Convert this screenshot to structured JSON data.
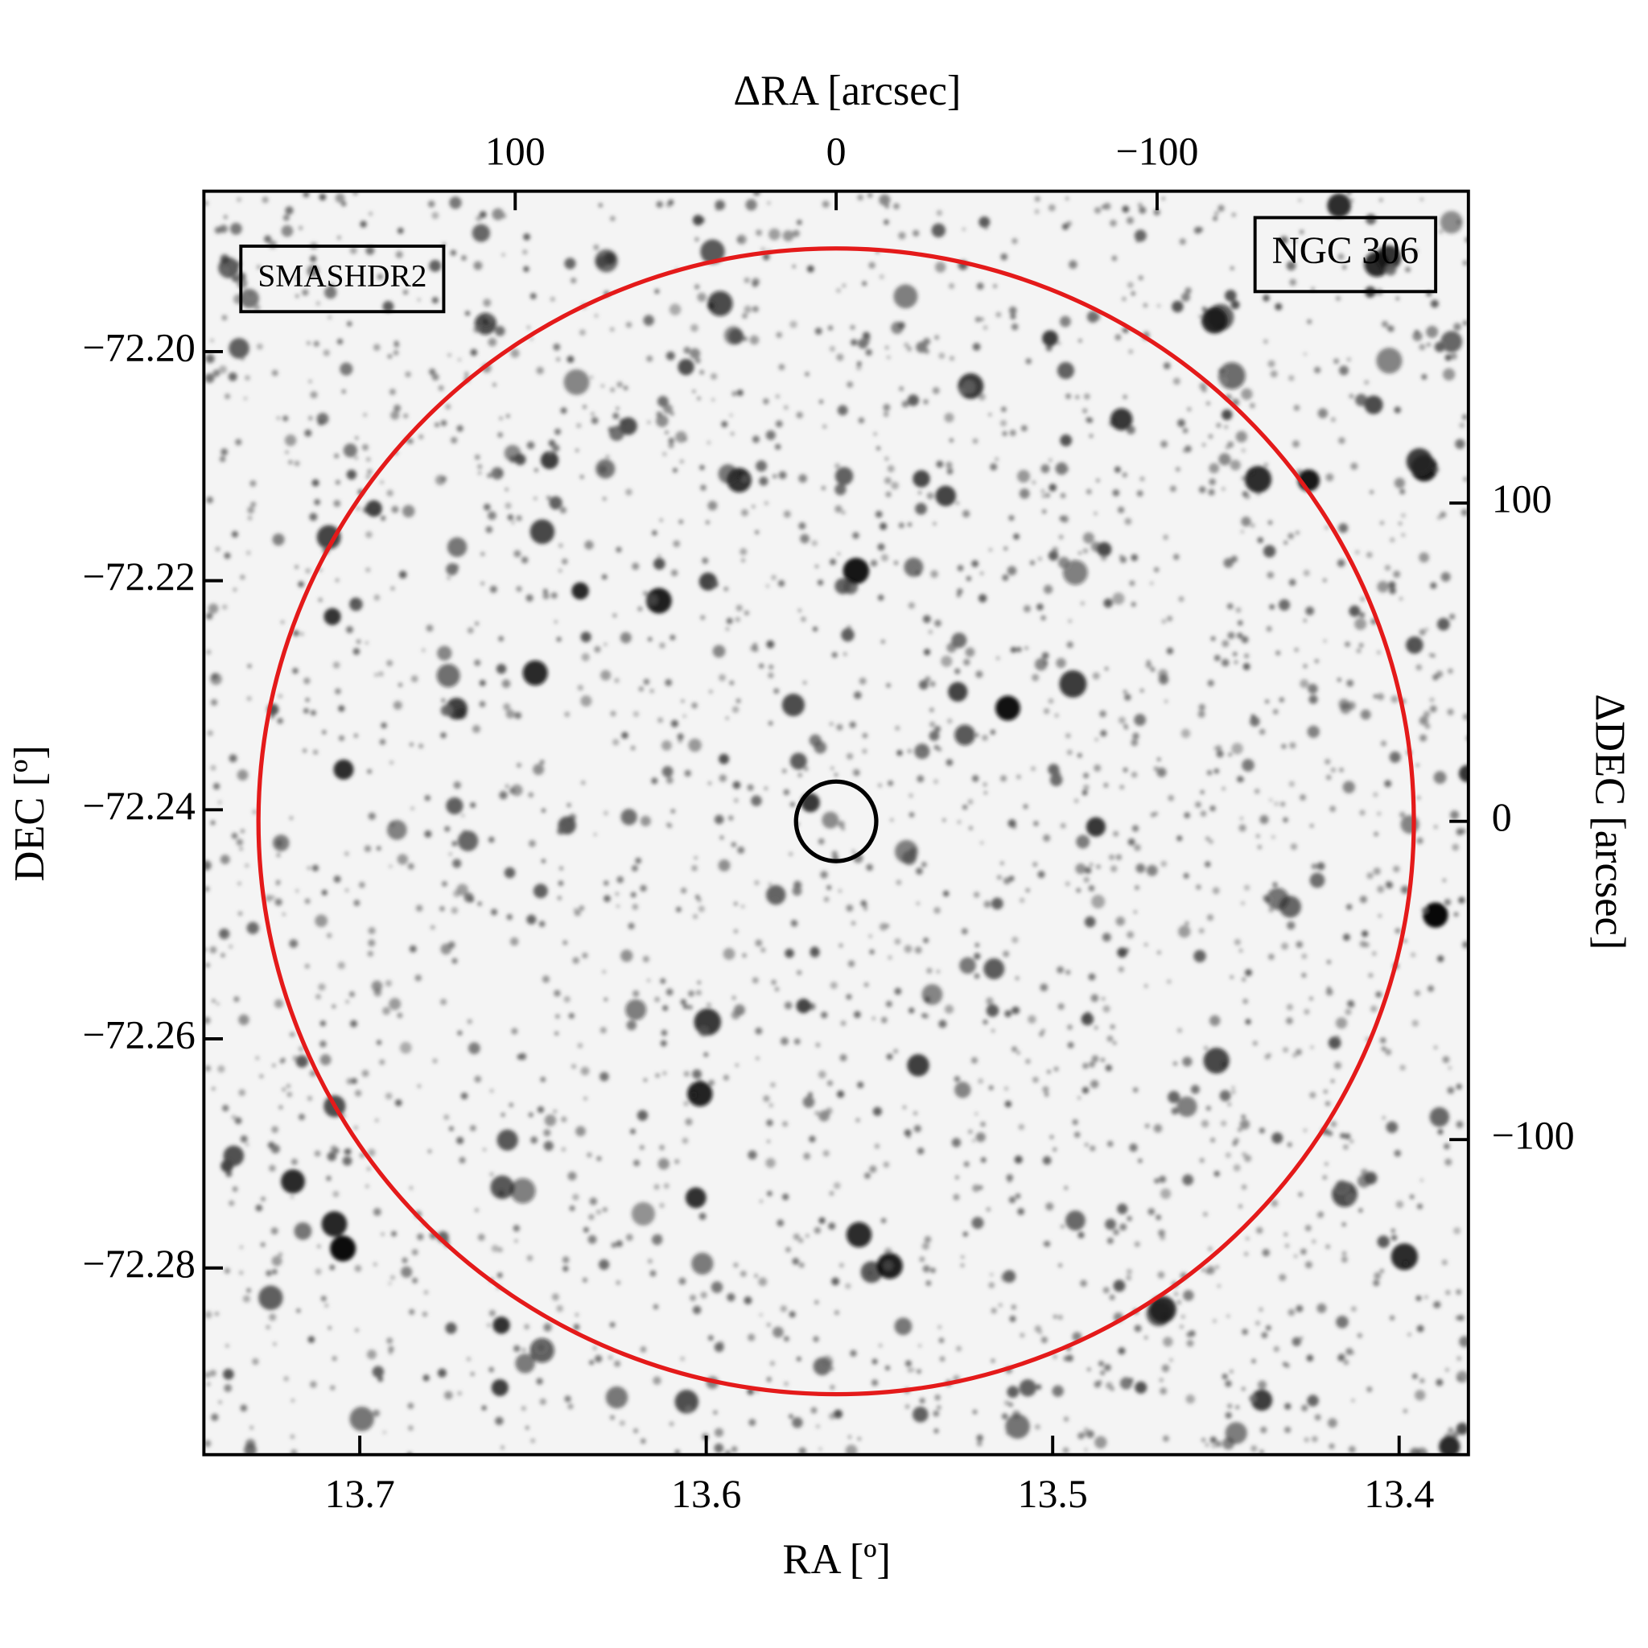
{
  "chart_data": {
    "type": "image",
    "xlabel": "RA [º]",
    "ylabel": "DEC [º]",
    "x2label": "ΔRA [arcsec]",
    "y2label": "ΔDEC [arcsec]",
    "xlim": [
      13.745,
      13.38
    ],
    "xticks": [
      13.7,
      13.6,
      13.5,
      13.4
    ],
    "ylim": [
      -72.2963,
      -72.186
    ],
    "yticks": [
      {
        "value": -72.2,
        "label": "−72.20"
      },
      {
        "value": -72.22,
        "label": "−72.22"
      },
      {
        "value": -72.24,
        "label": "−72.24"
      },
      {
        "value": -72.26,
        "label": "−72.26"
      },
      {
        "value": -72.28,
        "label": "−72.28"
      }
    ],
    "x2lim": [
      197,
      -197
    ],
    "x2ticks": [
      100,
      0,
      {
        "value": -100,
        "label": "−100"
      }
    ],
    "y2lim": [
      -199,
      198
    ],
    "y2ticks": [
      100,
      0,
      {
        "value": -100,
        "label": "−100"
      }
    ],
    "circles": [
      {
        "cx": 0,
        "cy": 0,
        "radius": 180,
        "color": "#e41a1a"
      },
      {
        "cx": 0,
        "cy": 0,
        "radius": 12.5,
        "color": "#000000"
      }
    ],
    "labels": [
      {
        "text": "SMASHDR2",
        "color": "#e41a1a",
        "corner": "top-left"
      },
      {
        "text": "NGC 306",
        "color": "#000000",
        "corner": "top-right"
      }
    ]
  }
}
